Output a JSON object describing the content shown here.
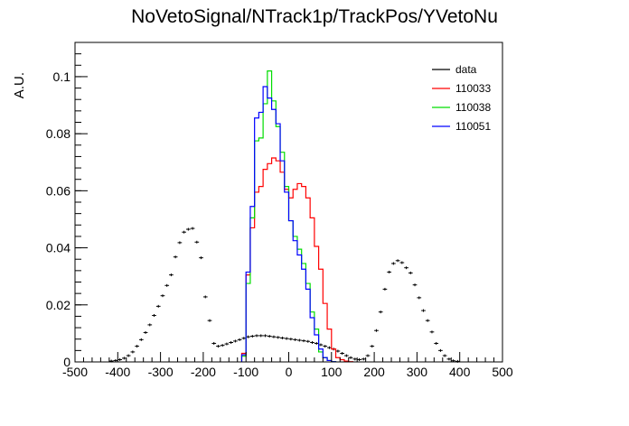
{
  "chart_data": {
    "type": "line",
    "title": "NoVetoSignal/NTrack1p/TrackPos/YVetoNu",
    "xlabel": "",
    "ylabel": "A.U.",
    "xlim": [
      -500,
      500
    ],
    "ylim": [
      0,
      0.112
    ],
    "x_ticks": [
      "-500",
      "-400",
      "-300",
      "-200",
      "-100",
      "0",
      "100",
      "200",
      "300",
      "400",
      "500"
    ],
    "y_ticks": [
      "0",
      "0.02",
      "0.04",
      "0.06",
      "0.08",
      "0.1"
    ],
    "grid": false,
    "legend_position": "top-right",
    "bin_width": 10,
    "series": [
      {
        "name": "data",
        "style": "points",
        "color": "#000000",
        "x": [
          -415,
          -405,
          -395,
          -385,
          -375,
          -365,
          -355,
          -345,
          -335,
          -325,
          -315,
          -305,
          -295,
          -285,
          -275,
          -265,
          -255,
          -245,
          -235,
          -225,
          -215,
          -205,
          -195,
          -185,
          -175,
          -165,
          -155,
          -145,
          -135,
          -125,
          -115,
          -105,
          -95,
          -85,
          -75,
          -65,
          -55,
          -45,
          -35,
          -25,
          -15,
          -5,
          5,
          15,
          25,
          35,
          45,
          55,
          65,
          75,
          85,
          95,
          105,
          115,
          125,
          135,
          145,
          155,
          165,
          175,
          185,
          195,
          205,
          215,
          225,
          235,
          245,
          255,
          265,
          275,
          285,
          295,
          305,
          315,
          325,
          335,
          345,
          355,
          365,
          375,
          385,
          395
        ],
        "y": [
          0.0003,
          0.0005,
          0.0008,
          0.0013,
          0.0022,
          0.0035,
          0.0055,
          0.0078,
          0.0103,
          0.013,
          0.0163,
          0.0195,
          0.0232,
          0.0268,
          0.0305,
          0.0368,
          0.0418,
          0.0455,
          0.0465,
          0.0468,
          0.042,
          0.0365,
          0.0228,
          0.0145,
          0.0065,
          0.0055,
          0.0058,
          0.0063,
          0.0068,
          0.0073,
          0.0078,
          0.0083,
          0.0088,
          0.009,
          0.0092,
          0.0092,
          0.0092,
          0.009,
          0.0088,
          0.0086,
          0.0084,
          0.0082,
          0.008,
          0.0078,
          0.0076,
          0.0074,
          0.0072,
          0.0068,
          0.0065,
          0.006,
          0.0055,
          0.005,
          0.0045,
          0.0038,
          0.003,
          0.0022,
          0.0015,
          0.001,
          0.0008,
          0.001,
          0.0022,
          0.0055,
          0.011,
          0.0175,
          0.0255,
          0.0315,
          0.0345,
          0.0355,
          0.0348,
          0.033,
          0.0312,
          0.027,
          0.0225,
          0.018,
          0.0145,
          0.0105,
          0.0065,
          0.004,
          0.0022,
          0.001,
          0.0004,
          0.0002
        ]
      },
      {
        "name": "110033",
        "style": "step",
        "color": "#ff0000",
        "x": [
          -105,
          -95,
          -85,
          -75,
          -65,
          -55,
          -45,
          -35,
          -25,
          -15,
          -5,
          5,
          15,
          25,
          35,
          45,
          55,
          65,
          75,
          85,
          95,
          105,
          115,
          125,
          135,
          145
        ],
        "y": [
          0.003,
          0.0305,
          0.047,
          0.0595,
          0.0615,
          0.0675,
          0.0695,
          0.0715,
          0.0705,
          0.0665,
          0.0605,
          0.0575,
          0.0605,
          0.0625,
          0.0615,
          0.0575,
          0.0505,
          0.0405,
          0.0325,
          0.0205,
          0.0115,
          0.0045,
          0.0015,
          0.0008,
          0.0003,
          0.0001
        ]
      },
      {
        "name": "110038",
        "style": "step",
        "color": "#00dd00",
        "x": [
          -105,
          -95,
          -85,
          -75,
          -65,
          -55,
          -45,
          -35,
          -25,
          -15,
          -5,
          5,
          15,
          25,
          35,
          45,
          55,
          65,
          75,
          85,
          95,
          105
        ],
        "y": [
          0.002,
          0.0275,
          0.0505,
          0.0775,
          0.0785,
          0.0905,
          0.102,
          0.0915,
          0.0825,
          0.0735,
          0.0615,
          0.0495,
          0.044,
          0.0395,
          0.0345,
          0.0275,
          0.0175,
          0.0115,
          0.0035,
          0.0015,
          0.0005,
          0.0001
        ]
      },
      {
        "name": "110051",
        "style": "step",
        "color": "#0000ff",
        "x": [
          -105,
          -95,
          -85,
          -75,
          -65,
          -55,
          -45,
          -35,
          -25,
          -15,
          -5,
          5,
          15,
          25,
          35,
          45,
          55,
          65,
          75,
          85,
          95,
          105
        ],
        "y": [
          0.0025,
          0.0315,
          0.0545,
          0.0855,
          0.0875,
          0.0965,
          0.0925,
          0.0885,
          0.0835,
          0.0705,
          0.0595,
          0.0495,
          0.0425,
          0.0375,
          0.0325,
          0.0255,
          0.0155,
          0.0095,
          0.0045,
          0.0015,
          0.0005,
          0.0001
        ]
      }
    ]
  }
}
